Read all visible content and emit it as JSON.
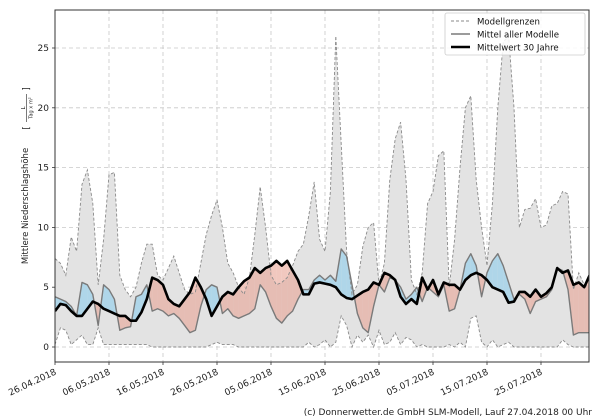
{
  "chart_data": {
    "type": "line",
    "title": "",
    "ylabel_main": "Mittlere Niederschlagshöhe",
    "ylabel_unit_num": "L",
    "ylabel_unit_den": "Tag x m²",
    "ylim": [
      -0.5,
      28
    ],
    "xlim_days": [
      0,
      99
    ],
    "start_date": "26.04.2018",
    "grid": true,
    "legend_position": "top-right",
    "yticks": [
      0,
      5,
      10,
      15,
      20,
      25
    ],
    "xticks": [
      {
        "day": 0,
        "label": "26.04.2018"
      },
      {
        "day": 10,
        "label": "06.05.2018"
      },
      {
        "day": 20,
        "label": "16.05.2018"
      },
      {
        "day": 30,
        "label": "26.05.2018"
      },
      {
        "day": 40,
        "label": "05.06.2018"
      },
      {
        "day": 50,
        "label": "15.06.2018"
      },
      {
        "day": 60,
        "label": "25.06.2018"
      },
      {
        "day": 70,
        "label": "05.07.2018"
      },
      {
        "day": 80,
        "label": "15.07.2018"
      },
      {
        "day": 90,
        "label": "25.07.2018"
      }
    ],
    "legend": [
      {
        "key": "bounds",
        "label": "Modellgrenzen"
      },
      {
        "key": "mean_models",
        "label": "Mittel aller Modelle"
      },
      {
        "key": "mean_30y",
        "label": "Mittelwert 30 Jahre"
      }
    ],
    "colors": {
      "band": "#e3e3e3",
      "bound_line": "#8a8a8a",
      "mean_models": "#7a7a7a",
      "mean_30y": "#000000",
      "above": "#a6d4ea",
      "below": "#e8a494",
      "grid": "#c8c8c8"
    },
    "series": [
      {
        "name": "Modellgrenzen oben",
        "values": [
          7.4,
          7.0,
          6.0,
          9.2,
          8.0,
          13.6,
          14.8,
          12.0,
          5.2,
          9.0,
          14.4,
          14.6,
          6.0,
          4.8,
          4.2,
          5.0,
          7.0,
          8.6,
          8.6,
          6.0,
          5.6,
          6.6,
          7.6,
          6.2,
          4.8,
          4.4,
          4.6,
          7.0,
          9.4,
          11.0,
          12.3,
          10.0,
          7.0,
          6.2,
          5.0,
          4.4,
          5.8,
          9.4,
          13.4,
          10.0,
          6.0,
          5.2,
          5.4,
          5.8,
          6.8,
          8.0,
          8.6,
          11.0,
          13.8,
          9.0,
          8.0,
          13.0,
          26.0,
          17.0,
          8.0,
          4.4,
          5.2,
          8.4,
          10.0,
          10.4,
          5.2,
          7.0,
          14.0,
          17.4,
          18.8,
          14.0,
          5.6,
          4.4,
          6.2,
          12.0,
          13.0,
          16.0,
          16.4,
          5.0,
          9.0,
          15.0,
          20.0,
          21.0,
          14.0,
          10.0,
          6.8,
          12.0,
          20.0,
          25.5,
          26.0,
          20.0,
          10.0,
          11.5,
          11.6,
          12.4,
          10.0,
          10.2,
          11.8,
          12.0,
          13.0,
          12.8,
          4.8,
          6.2,
          5.2,
          5.0
        ]
      },
      {
        "name": "Modellgrenzen unten",
        "values": [
          0.2,
          1.6,
          1.4,
          0.2,
          0.6,
          1.0,
          0.2,
          0.2,
          1.6,
          0.2,
          0.2,
          0.2,
          0.2,
          0.2,
          0.2,
          0.2,
          0.2,
          0.2,
          0.0,
          0.0,
          0.0,
          0.0,
          0.0,
          0.0,
          0.0,
          0.0,
          0.0,
          0.0,
          0.0,
          0.2,
          0.4,
          0.2,
          0.2,
          0.2,
          0.0,
          0.0,
          0.0,
          0.0,
          0.0,
          0.0,
          0.0,
          0.0,
          0.0,
          0.0,
          0.0,
          0.0,
          0.0,
          0.4,
          0.0,
          0.2,
          0.6,
          0.0,
          0.4,
          2.6,
          1.8,
          0.0,
          1.0,
          0.4,
          1.0,
          0.0,
          1.4,
          0.2,
          0.4,
          1.2,
          0.2,
          0.8,
          0.6,
          0.0,
          0.2,
          0.0,
          0.0,
          0.0,
          0.0,
          0.2,
          0.0,
          0.4,
          0.0,
          2.4,
          2.6,
          0.4,
          0.0,
          0.6,
          0.0,
          0.2,
          0.4,
          0.0,
          0.0,
          0.0,
          0.0,
          0.0,
          0.0,
          0.0,
          0.0,
          0.0,
          0.6,
          0.2,
          0.0,
          0.0,
          0.0,
          0.0
        ]
      },
      {
        "name": "Mittel aller Modelle",
        "values": [
          4.2,
          4.0,
          3.8,
          3.4,
          2.6,
          5.4,
          5.2,
          4.4,
          1.8,
          5.2,
          4.8,
          4.0,
          1.4,
          1.6,
          1.7,
          4.2,
          4.4,
          5.2,
          3.0,
          3.2,
          3.0,
          2.6,
          2.8,
          2.4,
          1.8,
          1.2,
          1.4,
          3.4,
          4.8,
          5.2,
          5.0,
          2.8,
          3.2,
          2.6,
          2.4,
          2.6,
          2.8,
          3.2,
          5.2,
          4.6,
          3.4,
          2.4,
          2.0,
          2.6,
          3.0,
          4.0,
          4.8,
          4.8,
          5.6,
          6.0,
          5.6,
          6.0,
          5.5,
          8.2,
          7.6,
          5.2,
          2.8,
          1.6,
          1.2,
          3.4,
          5.2,
          4.6,
          5.8,
          5.6,
          5.0,
          4.0,
          4.4,
          5.0,
          3.8,
          5.0,
          4.6,
          4.2,
          5.2,
          3.0,
          3.2,
          4.8,
          7.0,
          7.8,
          6.8,
          4.2,
          6.2,
          7.2,
          7.8,
          6.8,
          5.4,
          4.0,
          4.4,
          4.0,
          2.8,
          3.8,
          4.0,
          4.2,
          4.8,
          6.6,
          6.4,
          4.8,
          1.0,
          1.2,
          1.2,
          1.2
        ]
      },
      {
        "name": "Mittelwert 30 Jahre",
        "values": [
          3.0,
          3.6,
          3.5,
          3.0,
          2.6,
          2.6,
          3.2,
          3.8,
          3.6,
          3.2,
          3.0,
          2.8,
          2.6,
          2.6,
          2.2,
          2.2,
          2.9,
          4.0,
          5.8,
          5.6,
          5.2,
          4.0,
          3.6,
          3.4,
          4.0,
          4.6,
          5.8,
          5.0,
          4.0,
          2.6,
          3.4,
          4.2,
          4.6,
          4.4,
          5.0,
          5.5,
          5.8,
          6.6,
          6.2,
          6.6,
          6.8,
          7.2,
          6.8,
          7.2,
          6.4,
          5.6,
          4.4,
          4.4,
          5.3,
          5.4,
          5.3,
          5.2,
          5.0,
          4.4,
          4.1,
          4.0,
          4.3,
          4.6,
          4.8,
          5.4,
          5.2,
          6.2,
          6.0,
          5.6,
          4.2,
          3.6,
          4.0,
          3.6,
          5.8,
          4.8,
          5.6,
          4.4,
          5.4,
          5.2,
          5.2,
          4.8,
          5.6,
          6.0,
          6.2,
          6.0,
          5.6,
          5.0,
          4.8,
          4.6,
          3.7,
          3.8,
          4.6,
          4.6,
          4.2,
          4.8,
          4.2,
          4.5,
          5.0,
          6.6,
          6.2,
          6.4,
          5.2,
          5.4,
          5.0,
          6.0
        ]
      }
    ]
  },
  "footer": {
    "credit": "(c) Donnerwetter.de GmbH SLM-Modell, Lauf 27.04.2018 00 Uhr"
  }
}
